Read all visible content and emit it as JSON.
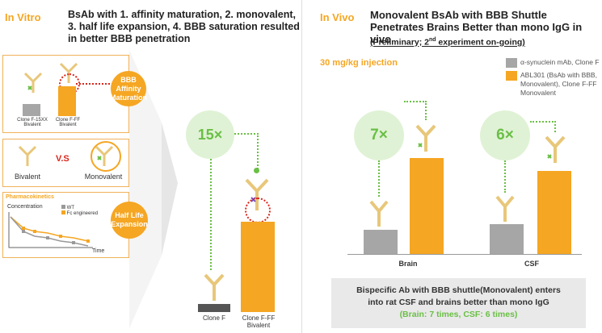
{
  "left": {
    "section": "In Vitro",
    "title": "BsAb with 1. affinity maturation, 2. monovalent, 3. half life expansion, 4. BBB saturation resulted in better BBB penetration",
    "panel1": {
      "label_a": "Clone F-15XX",
      "label_a2": "Bivalent",
      "label_b": "Clone F-FF",
      "label_b2": "Bivalent"
    },
    "badge1": "BBB Affinity Maturation",
    "panel2": {
      "left": "Bivalent",
      "vs": "V.S",
      "right": "Monovalent"
    },
    "panel3": {
      "title": "Pharmacokinetics",
      "ylabel": "Concentration",
      "xlabel": "Time",
      "legend_wt": "WT",
      "legend_fc": "Fc engineered"
    },
    "badge2": "Half Life Expansion",
    "fold": "15×",
    "bar_labels": {
      "a": "Clone F",
      "b": "Clone F-FF",
      "b2": "Bivalent"
    }
  },
  "right": {
    "section": "In Vivo",
    "title": "Monovalent BsAb with BBB Shuttle Penetrates Brains Better than mono IgG in vivo",
    "subtitle_pre": "(Preliminary; 2",
    "subtitle_sup": "nd",
    "subtitle_post": " experiment on-going)",
    "dose": "30 mg/kg injection",
    "legend": {
      "gray": "α-synuclein mAb, Clone F",
      "orange": "ABL301 (BsAb with BBB, Monovalent), Clone F-FF Monovalent"
    },
    "fold_brain": "7×",
    "fold_csf": "6×",
    "groups": [
      "Brain",
      "CSF"
    ],
    "summary1": "Bispecific Ab with BBB shuttle(Monovalent) enters",
    "summary2": "into rat CSF and brains better than mono IgG",
    "summary3": "(Brain: 7 times, CSF: 6 times)"
  },
  "colors": {
    "orange": "#f5a623",
    "gray": "#a6a6a6",
    "green": "#6abf45",
    "red": "#d9261c"
  }
}
